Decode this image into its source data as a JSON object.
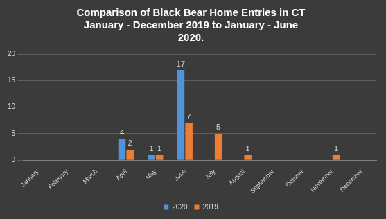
{
  "chart_data": {
    "type": "bar",
    "title": "Comparison of Black Bear Home Entries in CT January - December 2019 to January - June 2020.",
    "categories": [
      "January",
      "February",
      "March",
      "April",
      "May",
      "June",
      "July",
      "August",
      "September",
      "October",
      "November",
      "December"
    ],
    "series": [
      {
        "name": "2020",
        "color": "#4f94d8",
        "values": [
          null,
          null,
          null,
          4,
          1,
          17,
          null,
          null,
          null,
          null,
          null,
          null
        ]
      },
      {
        "name": "2019",
        "color": "#ed7d31",
        "values": [
          null,
          null,
          null,
          2,
          1,
          7,
          5,
          1,
          null,
          null,
          1,
          null
        ]
      }
    ],
    "ylim": [
      0,
      20
    ],
    "yticks": [
      0,
      5,
      10,
      15,
      20
    ],
    "grid": true,
    "legend": "bottom",
    "data_labels": true
  }
}
